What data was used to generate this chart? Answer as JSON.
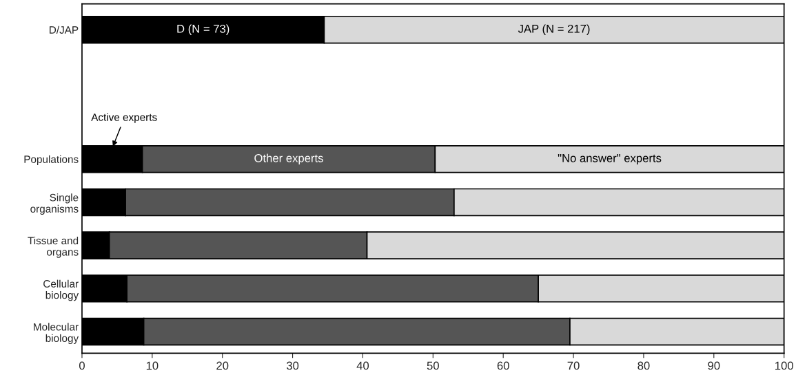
{
  "chart_data": {
    "type": "bar",
    "orientation": "horizontal",
    "stacked": true,
    "categories": [
      "D/JAP",
      null,
      null,
      "Populations",
      "Single\norganisms",
      "Tissue and\norgans",
      "Cellular\nbiology",
      "Molecular\nbiology"
    ],
    "series": [
      {
        "name": "D (N = 73)",
        "color": "#000000",
        "values": [
          34.5,
          null,
          null,
          null,
          null,
          null,
          null,
          null
        ]
      },
      {
        "name": "Active experts",
        "color": "#000000",
        "values": [
          null,
          null,
          null,
          8.6,
          6.2,
          3.9,
          6.4,
          8.8
        ]
      },
      {
        "name": "Other experts",
        "color": "#555555",
        "values": [
          null,
          null,
          null,
          41.7,
          46.8,
          36.7,
          58.6,
          60.7
        ]
      },
      {
        "name": "\"No answer\" experts",
        "color": "#d9d9d9",
        "values": [
          null,
          null,
          null,
          49.7,
          47.0,
          59.4,
          35.0,
          30.5
        ]
      },
      {
        "name": "JAP (N = 217)",
        "color": "#d9d9d9",
        "values": [
          65.5,
          null,
          null,
          null,
          null,
          null,
          null,
          null
        ]
      }
    ],
    "xlim": [
      0,
      100
    ],
    "xticks": [
      0,
      10,
      20,
      30,
      40,
      50,
      60,
      70,
      80,
      90,
      100
    ],
    "grid": false
  }
}
